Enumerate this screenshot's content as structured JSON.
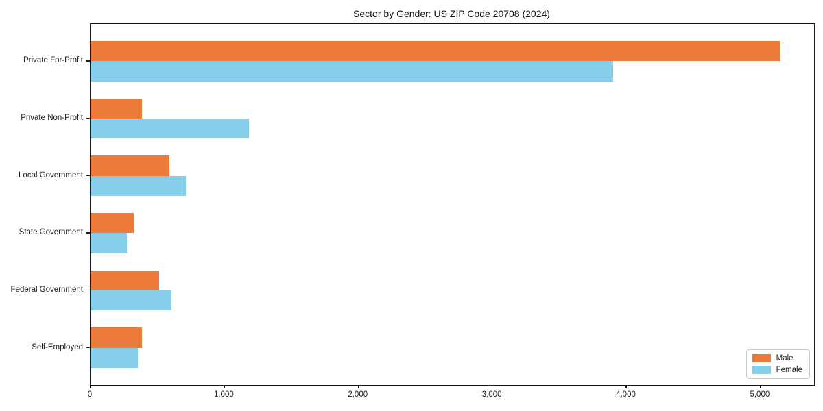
{
  "chart_data": {
    "type": "bar",
    "orientation": "horizontal",
    "title": "Sector by Gender: US ZIP Code 20708 (2024)",
    "categories": [
      "Private For-Profit",
      "Private Non-Profit",
      "Local Government",
      "State Government",
      "Federal Government",
      "Self-Employed"
    ],
    "series": [
      {
        "name": "Male",
        "color": "#EB7A3B",
        "values": [
          5150,
          385,
          590,
          320,
          510,
          385
        ]
      },
      {
        "name": "Female",
        "color": "#87CEEB",
        "values": [
          3900,
          1180,
          710,
          270,
          605,
          355
        ]
      }
    ],
    "xlabel": "",
    "ylabel": "",
    "xlim": [
      0,
      5400
    ],
    "xticks": [
      0,
      1000,
      2000,
      3000,
      4000,
      5000
    ],
    "xtick_labels": [
      "0",
      "1,000",
      "2,000",
      "3,000",
      "4,000",
      "5,000"
    ],
    "legend_position": "lower right",
    "grid": false,
    "colors": {
      "male": "#EB7A3B",
      "female": "#87CEEB",
      "spine": "#1a1a1a",
      "text": "#1a1a1a",
      "background": "#ffffff"
    }
  }
}
